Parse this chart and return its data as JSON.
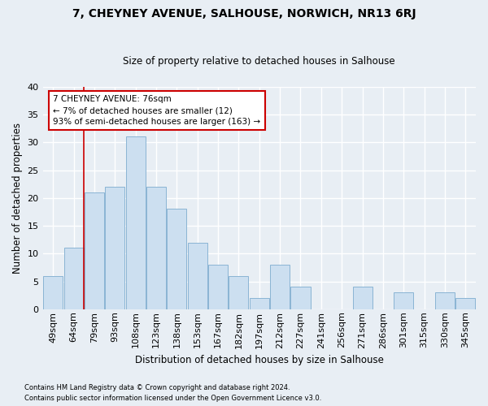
{
  "title": "7, CHEYNEY AVENUE, SALHOUSE, NORWICH, NR13 6RJ",
  "subtitle": "Size of property relative to detached houses in Salhouse",
  "xlabel": "Distribution of detached houses by size in Salhouse",
  "ylabel": "Number of detached properties",
  "categories": [
    "49sqm",
    "64sqm",
    "79sqm",
    "93sqm",
    "108sqm",
    "123sqm",
    "138sqm",
    "153sqm",
    "167sqm",
    "182sqm",
    "197sqm",
    "212sqm",
    "227sqm",
    "241sqm",
    "256sqm",
    "271sqm",
    "286sqm",
    "301sqm",
    "315sqm",
    "330sqm",
    "345sqm"
  ],
  "values": [
    6,
    11,
    21,
    22,
    31,
    22,
    18,
    12,
    8,
    6,
    2,
    8,
    4,
    0,
    0,
    4,
    0,
    3,
    0,
    3,
    2
  ],
  "bar_color": "#ccdff0",
  "bar_edgecolor": "#8ab4d4",
  "marker_line_color": "#cc0000",
  "annotation_line1": "7 CHEYNEY AVENUE: 76sqm",
  "annotation_line2": "← 7% of detached houses are smaller (12)",
  "annotation_line3": "93% of semi-detached houses are larger (163) →",
  "annotation_box_color": "#ffffff",
  "annotation_box_edgecolor": "#cc0000",
  "footer_line1": "Contains HM Land Registry data © Crown copyright and database right 2024.",
  "footer_line2": "Contains public sector information licensed under the Open Government Licence v3.0.",
  "ylim": [
    0,
    40
  ],
  "yticks": [
    0,
    5,
    10,
    15,
    20,
    25,
    30,
    35,
    40
  ],
  "background_color": "#e8eef4",
  "grid_color": "#ffffff"
}
